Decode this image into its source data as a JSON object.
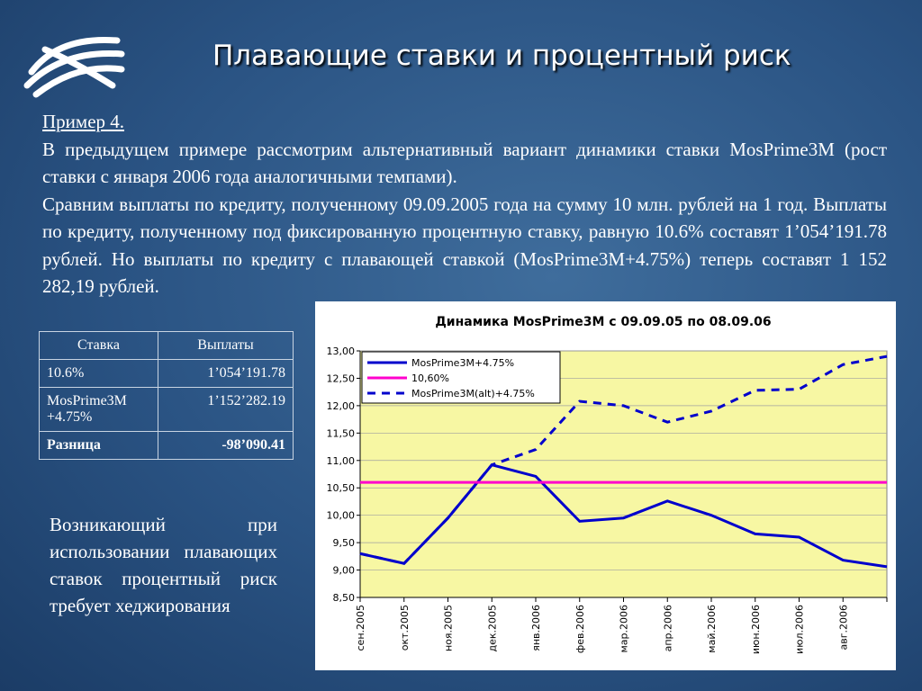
{
  "header": {
    "title": "Плавающие ставки и процентный риск"
  },
  "body": {
    "paragraphs": [
      "Пример 4.",
      "В предыдущем примере рассмотрим альтернативный вариант динамики ставки MosPrime3M (рост ставки с января 2006 года аналогичными темпами).",
      "Сравним выплаты по кредиту, полученному 09.09.2005 года на сумму 10 млн. рублей на 1 год. Выплаты по кредиту, полученному под фиксированную процентную ставку, равную 10.6% составят 1’054’191.78 рублей. Но выплаты по кредиту с плавающей ставкой (MosPrime3M+4.75%) теперь составят 1 152 282,19 рублей."
    ]
  },
  "table": {
    "header": [
      "Ставка",
      "Выплаты"
    ],
    "rows": [
      [
        "10.6%",
        "1’054’191.78"
      ],
      [
        "MosPrime3M +4.75%",
        "1’152’282.19"
      ],
      [
        "Разница",
        "-98’090.41"
      ]
    ]
  },
  "note": "Возникающий при использовании плавающих ставок процентный риск требует хеджирования",
  "chart_data": {
    "type": "line",
    "title": "Динамика MosPrime3M с 09.09.05 по 08.09.06",
    "categories": [
      "сен.2005",
      "окт.2005",
      "ноя.2005",
      "дек.2005",
      "янв.2006",
      "фев.2006",
      "мар.2006",
      "апр.2006",
      "май.2006",
      "июн.2006",
      "июл.2006",
      "авг.2006",
      null
    ],
    "series": [
      {
        "name": "MosPrime3M+4.75%",
        "color": "#0000cc",
        "dashed": false,
        "values": [
          9.3,
          9.12,
          9.95,
          10.92,
          10.71,
          9.89,
          9.95,
          10.26,
          10.0,
          9.66,
          9.6,
          9.18,
          9.06
        ]
      },
      {
        "name": "10,60%",
        "color": "#ff00cc",
        "dashed": false,
        "values": [
          10.6,
          10.6,
          10.6,
          10.6,
          10.6,
          10.6,
          10.6,
          10.6,
          10.6,
          10.6,
          10.6,
          10.6,
          10.6
        ]
      },
      {
        "name": "MosPrime3M(alt)+4.75%",
        "color": "#0000cc",
        "dashed": true,
        "values": [
          9.3,
          9.12,
          9.95,
          10.92,
          11.2,
          12.08,
          12.0,
          11.7,
          11.9,
          12.28,
          12.3,
          12.75,
          12.9
        ]
      }
    ],
    "ylim": [
      8.5,
      13
    ],
    "yticks": [
      {
        "value": 8.5,
        "label": "8,50"
      },
      {
        "value": 9,
        "label": "9,00"
      },
      {
        "value": 9.5,
        "label": "9,50"
      },
      {
        "value": 10,
        "label": "10,00"
      },
      {
        "value": 10.5,
        "label": "10,50"
      },
      {
        "value": 11,
        "label": "11,00"
      },
      {
        "value": 11.5,
        "label": "11,50"
      },
      {
        "value": 12,
        "label": "12,00"
      },
      {
        "value": 12.5,
        "label": "12,50"
      },
      {
        "value": 13,
        "label": "13,00"
      }
    ],
    "grid": true,
    "legend": "top-left",
    "plot_color": "#f7f7a3"
  }
}
